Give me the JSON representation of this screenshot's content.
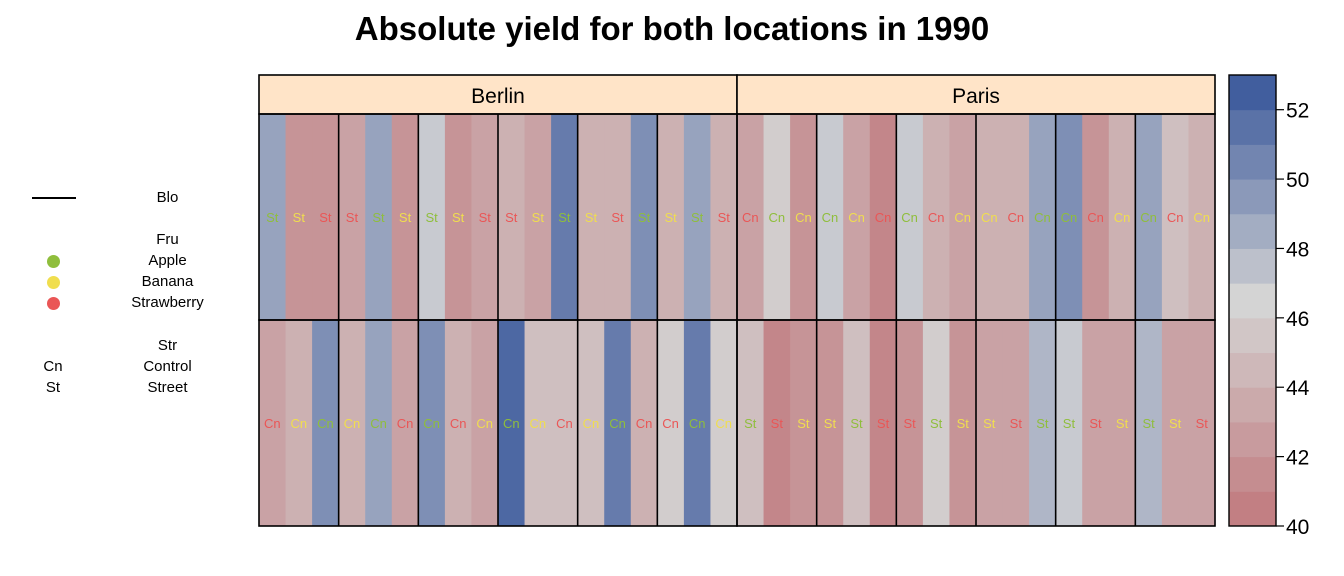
{
  "chart_data": {
    "type": "heatmap",
    "title": "Absolute yield for both locations in 1990",
    "panels": [
      "Berlin",
      "Paris"
    ],
    "value_scale": {
      "min": 40,
      "max": 53,
      "ticks": [
        40,
        42,
        44,
        46,
        48,
        50,
        52
      ]
    },
    "colors": {
      "low": "#c0787c",
      "mid": "#d4d4d4",
      "high": "#35549a",
      "strip": "#ffe4c8"
    },
    "legend": {
      "block": {
        "title": "Blo"
      },
      "fruit": {
        "title": "Fru",
        "items": [
          {
            "label": "Apple",
            "color": "#8fbe3c"
          },
          {
            "label": "Banana",
            "color": "#f0de4e"
          },
          {
            "label": "Strawberry",
            "color": "#ea5656"
          }
        ]
      },
      "street": {
        "title": "Str",
        "items": [
          {
            "code": "Cn",
            "label": "Control"
          },
          {
            "code": "St",
            "label": "Street"
          }
        ]
      }
    },
    "rows": [
      {
        "row": 1,
        "Berlin": {
          "street": [
            "St",
            "St",
            "St",
            "St",
            "St",
            "St",
            "St",
            "St",
            "St",
            "St",
            "St",
            "St",
            "St",
            "St",
            "St",
            "St",
            "St",
            "St"
          ],
          "fruit": [
            "Apple",
            "Banana",
            "Strawberry",
            "Strawberry",
            "Apple",
            "Banana",
            "Apple",
            "Banana",
            "Strawberry",
            "Strawberry",
            "Banana",
            "Apple",
            "Banana",
            "Strawberry",
            "Apple",
            "Banana",
            "Apple",
            "Strawberry"
          ],
          "yield": [
            49,
            42,
            42,
            43,
            49,
            42,
            47,
            42,
            43,
            44,
            43,
            51,
            44,
            44,
            50,
            44,
            49,
            44
          ]
        },
        "Paris": {
          "street": [
            "Cn",
            "Cn",
            "Cn",
            "Cn",
            "Cn",
            "Cn",
            "Cn",
            "Cn",
            "Cn",
            "Cn",
            "Cn",
            "Cn",
            "Cn",
            "Cn",
            "Cn",
            "Cn",
            "Cn",
            "Cn"
          ],
          "fruit": [
            "Strawberry",
            "Apple",
            "Banana",
            "Apple",
            "Banana",
            "Strawberry",
            "Apple",
            "Strawberry",
            "Banana",
            "Banana",
            "Strawberry",
            "Apple",
            "Apple",
            "Strawberry",
            "Banana",
            "Apple",
            "Strawberry",
            "Banana"
          ],
          "yield": [
            43,
            46,
            42,
            47,
            43,
            41,
            47,
            44,
            43,
            44,
            44,
            49,
            50,
            42,
            44,
            49,
            45,
            44
          ]
        }
      },
      {
        "row": 2,
        "Berlin": {
          "street": [
            "Cn",
            "Cn",
            "Cn",
            "Cn",
            "Cn",
            "Cn",
            "Cn",
            "Cn",
            "Cn",
            "Cn",
            "Cn",
            "Cn",
            "Cn",
            "Cn",
            "Cn",
            "Cn",
            "Cn",
            "Cn"
          ],
          "fruit": [
            "Strawberry",
            "Banana",
            "Apple",
            "Banana",
            "Apple",
            "Strawberry",
            "Apple",
            "Strawberry",
            "Banana",
            "Apple",
            "Banana",
            "Strawberry",
            "Banana",
            "Apple",
            "Strawberry",
            "Strawberry",
            "Apple",
            "Banana"
          ],
          "yield": [
            43,
            44,
            50,
            44,
            49,
            43,
            50,
            44,
            43,
            52,
            45,
            45,
            45,
            51,
            44,
            46,
            51,
            46
          ]
        },
        "Paris": {
          "street": [
            "St",
            "St",
            "St",
            "St",
            "St",
            "St",
            "St",
            "St",
            "St",
            "St",
            "St",
            "St",
            "St",
            "St",
            "St",
            "St",
            "St",
            "St"
          ],
          "fruit": [
            "Apple",
            "Strawberry",
            "Banana",
            "Banana",
            "Apple",
            "Strawberry",
            "Strawberry",
            "Apple",
            "Banana",
            "Banana",
            "Strawberry",
            "Apple",
            "Apple",
            "Strawberry",
            "Banana",
            "Apple",
            "Banana",
            "Strawberry"
          ],
          "yield": [
            45,
            41,
            42,
            42,
            45,
            41,
            42,
            46,
            42,
            43,
            43,
            48,
            47,
            43,
            43,
            48,
            43,
            43
          ]
        }
      }
    ]
  }
}
